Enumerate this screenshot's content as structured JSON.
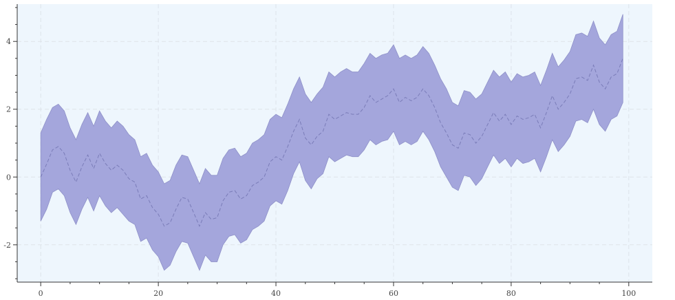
{
  "chart_data": {
    "type": "area",
    "title": "",
    "xlabel": "",
    "ylabel": "",
    "xlim": [
      -4,
      104
    ],
    "ylim": [
      -3.1,
      5.1
    ],
    "grid": true,
    "x_ticks": [
      0,
      20,
      40,
      60,
      80,
      100
    ],
    "x_tick_labels": [
      "0",
      "20",
      "40",
      "60",
      "80",
      "100"
    ],
    "y_ticks": [
      -2,
      0,
      2,
      4
    ],
    "y_tick_labels": [
      "-2",
      "0",
      "2",
      "4"
    ],
    "x": [
      0,
      1,
      2,
      3,
      4,
      5,
      6,
      7,
      8,
      9,
      10,
      11,
      12,
      13,
      14,
      15,
      16,
      17,
      18,
      19,
      20,
      21,
      22,
      23,
      24,
      25,
      26,
      27,
      28,
      29,
      30,
      31,
      32,
      33,
      34,
      35,
      36,
      37,
      38,
      39,
      40,
      41,
      42,
      43,
      44,
      45,
      46,
      47,
      48,
      49,
      50,
      51,
      52,
      53,
      54,
      55,
      56,
      57,
      58,
      59,
      60,
      61,
      62,
      63,
      64,
      65,
      66,
      67,
      68,
      69,
      70,
      71,
      72,
      73,
      74,
      75,
      76,
      77,
      78,
      79,
      80,
      81,
      82,
      83,
      84,
      85,
      86,
      87,
      88,
      89,
      90,
      91,
      92,
      93,
      94,
      95,
      96,
      97,
      98,
      99
    ],
    "series": [
      {
        "role": "mean",
        "style": "dashed",
        "values": [
          0.0,
          0.38,
          0.8,
          0.9,
          0.7,
          0.2,
          -0.15,
          0.3,
          0.65,
          0.25,
          0.7,
          0.4,
          0.2,
          0.35,
          0.2,
          -0.05,
          -0.15,
          -0.65,
          -0.55,
          -0.9,
          -1.1,
          -1.45,
          -1.35,
          -0.95,
          -0.6,
          -0.65,
          -1.05,
          -1.45,
          -1.05,
          -1.25,
          -1.2,
          -0.7,
          -0.45,
          -0.4,
          -0.65,
          -0.55,
          -0.25,
          -0.15,
          0.0,
          0.45,
          0.6,
          0.5,
          0.9,
          1.35,
          1.7,
          1.15,
          0.95,
          1.2,
          1.35,
          1.85,
          1.7,
          1.8,
          1.9,
          1.85,
          1.85,
          2.05,
          2.4,
          2.2,
          2.3,
          2.4,
          2.6,
          2.2,
          2.35,
          2.25,
          2.35,
          2.6,
          2.4,
          2.05,
          1.6,
          1.3,
          0.95,
          0.85,
          1.3,
          1.25,
          1.0,
          1.2,
          1.55,
          1.9,
          1.65,
          1.85,
          1.55,
          1.8,
          1.7,
          1.75,
          1.85,
          1.45,
          1.9,
          2.4,
          2.0,
          2.2,
          2.45,
          2.9,
          2.95,
          2.85,
          3.3,
          2.8,
          2.6,
          2.95,
          3.05,
          3.5
        ]
      },
      {
        "role": "upper",
        "values": [
          1.3,
          1.7,
          2.05,
          2.15,
          1.95,
          1.45,
          1.1,
          1.55,
          1.9,
          1.5,
          1.95,
          1.65,
          1.45,
          1.65,
          1.5,
          1.25,
          1.1,
          0.6,
          0.7,
          0.35,
          0.15,
          -0.2,
          -0.1,
          0.35,
          0.65,
          0.6,
          0.2,
          -0.2,
          0.25,
          0.05,
          0.05,
          0.55,
          0.8,
          0.85,
          0.6,
          0.7,
          1.0,
          1.1,
          1.25,
          1.7,
          1.85,
          1.75,
          2.15,
          2.6,
          2.95,
          2.45,
          2.2,
          2.45,
          2.65,
          3.1,
          2.95,
          3.1,
          3.2,
          3.1,
          3.1,
          3.35,
          3.65,
          3.5,
          3.6,
          3.65,
          3.9,
          3.5,
          3.6,
          3.5,
          3.6,
          3.85,
          3.65,
          3.3,
          2.9,
          2.6,
          2.2,
          2.1,
          2.55,
          2.5,
          2.3,
          2.45,
          2.8,
          3.15,
          2.95,
          3.1,
          2.8,
          3.05,
          2.95,
          3.0,
          3.1,
          2.7,
          3.15,
          3.65,
          3.25,
          3.45,
          3.7,
          4.2,
          4.25,
          4.15,
          4.6,
          4.1,
          3.9,
          4.2,
          4.3,
          4.8
        ]
      },
      {
        "role": "lower",
        "values": [
          -1.3,
          -0.95,
          -0.45,
          -0.35,
          -0.55,
          -1.05,
          -1.4,
          -0.95,
          -0.6,
          -1.0,
          -0.55,
          -0.85,
          -1.05,
          -0.9,
          -1.1,
          -1.3,
          -1.4,
          -1.9,
          -1.8,
          -2.15,
          -2.35,
          -2.75,
          -2.6,
          -2.2,
          -1.9,
          -1.95,
          -2.35,
          -2.75,
          -2.3,
          -2.5,
          -2.5,
          -2.0,
          -1.75,
          -1.7,
          -1.95,
          -1.85,
          -1.55,
          -1.45,
          -1.3,
          -0.85,
          -0.7,
          -0.8,
          -0.4,
          0.1,
          0.45,
          -0.1,
          -0.35,
          -0.05,
          0.1,
          0.6,
          0.45,
          0.55,
          0.65,
          0.6,
          0.6,
          0.8,
          1.1,
          0.95,
          1.05,
          1.1,
          1.35,
          0.95,
          1.05,
          0.95,
          1.05,
          1.35,
          1.1,
          0.75,
          0.3,
          0.0,
          -0.3,
          -0.4,
          0.05,
          0.0,
          -0.25,
          -0.05,
          0.3,
          0.65,
          0.4,
          0.55,
          0.3,
          0.55,
          0.4,
          0.45,
          0.55,
          0.15,
          0.6,
          1.1,
          0.75,
          0.95,
          1.2,
          1.65,
          1.7,
          1.6,
          2.0,
          1.55,
          1.35,
          1.7,
          1.8,
          2.2
        ]
      }
    ]
  },
  "colors": {
    "background": "#ffffff",
    "plot_background": "#eef6fd",
    "band_fill": "#a4a6dc",
    "band_stroke": "#8e90c8",
    "mean_line": "#7a7cb8",
    "grid": "#dde3ea",
    "axis": "#333333",
    "tick_label": "#444444"
  }
}
